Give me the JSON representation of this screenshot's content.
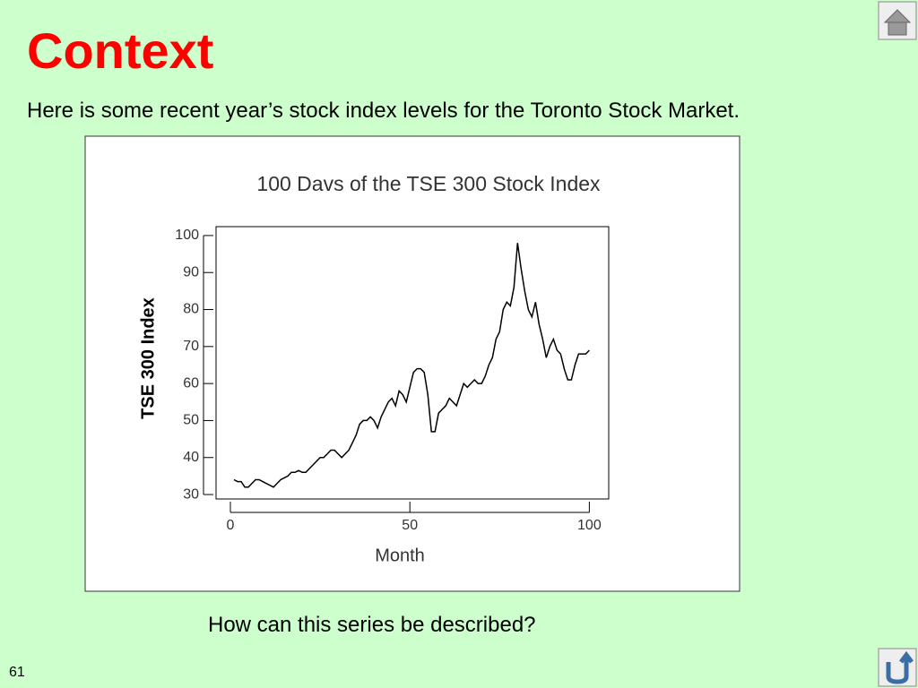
{
  "slide": {
    "title": "Context",
    "subtitle": "Here is some recent year’s stock index levels for the Toronto Stock Market.",
    "question": "How can this series be described?",
    "page_number": "61"
  },
  "chart_data": {
    "type": "line",
    "title": "100 Davs of the TSE 300 Stock Index",
    "x_label": "Month",
    "y_label": "TSE 300 Index",
    "x": [
      1,
      2,
      3,
      4,
      5,
      6,
      7,
      8,
      9,
      10,
      11,
      12,
      13,
      14,
      15,
      16,
      17,
      18,
      19,
      20,
      21,
      22,
      23,
      24,
      25,
      26,
      27,
      28,
      29,
      30,
      31,
      32,
      33,
      34,
      35,
      36,
      37,
      38,
      39,
      40,
      41,
      42,
      43,
      44,
      45,
      46,
      47,
      48,
      49,
      50,
      51,
      52,
      53,
      54,
      55,
      56,
      57,
      58,
      59,
      60,
      61,
      62,
      63,
      64,
      65,
      66,
      67,
      68,
      69,
      70,
      71,
      72,
      73,
      74,
      75,
      76,
      77,
      78,
      79,
      80,
      81,
      82,
      83,
      84,
      85,
      86,
      87,
      88,
      89,
      90,
      91,
      92,
      93,
      94,
      95,
      96,
      97,
      98,
      99,
      100
    ],
    "series": [
      {
        "name": "TSE 300",
        "color": "#000000",
        "values": [
          34,
          33.5,
          33.5,
          32,
          32,
          33,
          34,
          34,
          33.5,
          33,
          32.5,
          32,
          33,
          34,
          34.5,
          35,
          36,
          36,
          36.5,
          36,
          36,
          37,
          38,
          39,
          40,
          40,
          41,
          42,
          42,
          41,
          40,
          41,
          42,
          44,
          46,
          49,
          50,
          50,
          51,
          50,
          48,
          51,
          53,
          55,
          56,
          54,
          58,
          57,
          55,
          59,
          63,
          64,
          64,
          63,
          57,
          47,
          47,
          52,
          53,
          54,
          56,
          55,
          54,
          57,
          60,
          59,
          60,
          61,
          60,
          60,
          62,
          65,
          67,
          72,
          74,
          80,
          82,
          81,
          86,
          98,
          91,
          85,
          80,
          78,
          82,
          76,
          72,
          67,
          70,
          72,
          69,
          68,
          64,
          61,
          61,
          65,
          68,
          68,
          68,
          69
        ]
      }
    ],
    "xlim": [
      -4,
      105.4
    ],
    "ylim": [
      28.8,
      102.4
    ],
    "xticks": [
      0,
      50,
      100
    ],
    "yticks": [
      30,
      40,
      50,
      60,
      70,
      80,
      90,
      100
    ]
  }
}
